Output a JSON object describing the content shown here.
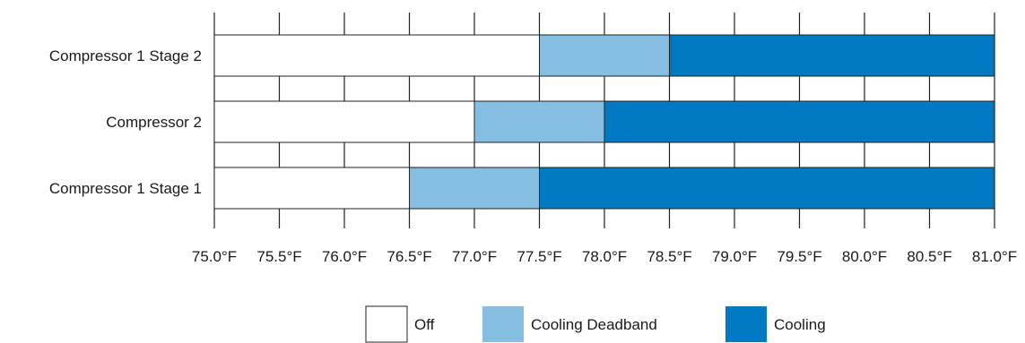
{
  "chart_data": {
    "type": "bar",
    "orientation": "horizontal",
    "stacked": true,
    "title": "",
    "xlabel": "",
    "ylabel": "",
    "xlim": [
      75.0,
      81.0
    ],
    "x_ticks": [
      75.0,
      75.5,
      76.0,
      76.5,
      77.0,
      77.5,
      78.0,
      78.5,
      79.0,
      79.5,
      80.0,
      80.5,
      81.0
    ],
    "x_tick_labels": [
      "75.0°F",
      "75.5°F",
      "76.0°F",
      "76.5°F",
      "77.0°F",
      "77.5°F",
      "78.0°F",
      "78.5°F",
      "79.0°F",
      "79.5°F",
      "80.0°F",
      "80.5°F",
      "81.0°F"
    ],
    "grid": "vertical lines at each tick",
    "legend_placement": "bottom",
    "categories": [
      "Compressor 1 Stage 2",
      "Compressor 2",
      "Compressor 1 Stage 1"
    ],
    "series": [
      {
        "name": "Off",
        "color": "#ffffff",
        "ranges": [
          [
            75.0,
            77.5
          ],
          [
            75.0,
            77.0
          ],
          [
            75.0,
            76.5
          ]
        ]
      },
      {
        "name": "Cooling Deadband",
        "color": "#84bfe2",
        "ranges": [
          [
            77.5,
            78.5
          ],
          [
            77.0,
            78.0
          ],
          [
            76.5,
            77.5
          ]
        ]
      },
      {
        "name": "Cooling",
        "color": "#0079c2",
        "ranges": [
          [
            78.5,
            81.0
          ],
          [
            78.0,
            81.0
          ],
          [
            77.5,
            81.0
          ]
        ]
      }
    ]
  }
}
